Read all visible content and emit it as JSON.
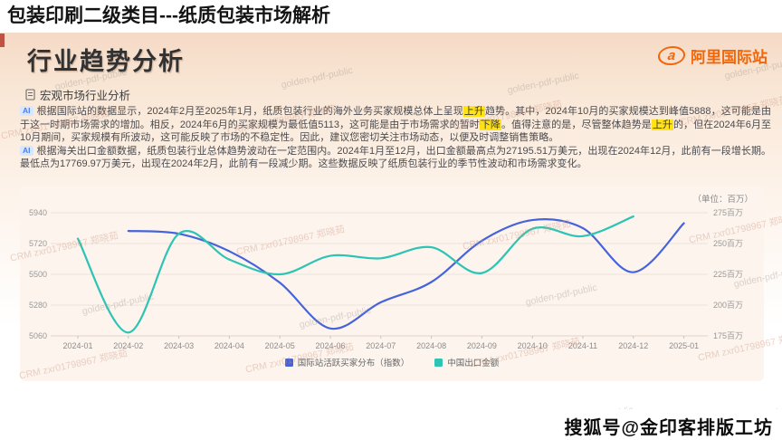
{
  "page": {
    "title": "包装印刷二级类目---纸质包装市场解析",
    "footer": "搜狐号@金印客排版工坊"
  },
  "slide": {
    "heading": "行业趋势分析",
    "brand": {
      "name": "阿里国际站",
      "color": "#f2660a",
      "icon": "alibaba-logo-icon"
    },
    "section": {
      "icon": "document-icon",
      "label": "宏观市场行业分析"
    },
    "paragraphs": [
      {
        "badge": "AI",
        "segments": [
          {
            "t": "根据国际站的数据显示，2024年2月至2025年1月，纸质包装行业的海外业务买家规模总体上呈现"
          },
          {
            "t": "上升",
            "hl": true
          },
          {
            "t": "趋势。其中，2024年10月的买家规模达到峰值5888，这可能是由于这一时期市场需求的增加。相反，2024年6月的买家规模为最低值5113，这可能是由于市场需求的暂时"
          },
          {
            "t": "下降",
            "hl": true
          },
          {
            "t": "。值得注意的是，尽管整体趋势是"
          },
          {
            "t": "上升",
            "hl": true
          },
          {
            "t": "的，但在2024年6月至10月期间，买家规模有所波动，这可能反映了市场的不稳定性。因此，建议您密切关注市场动态，以便及时调整销售策略。"
          }
        ]
      },
      {
        "badge": "AI",
        "segments": [
          {
            "t": "根据海关出口金额数据，纸质包装行业总体趋势波动在一定范围内。2024年1月至12月，出口金额最高点为27195.51万美元，出现在2024年12月，此前有一段增长期。最低点为17769.97万美元，出现在2024年2月，此前有一段减少期。这些数据反映了纸质包装行业的季节性波动和市场需求变化。"
          }
        ]
      }
    ],
    "watermarks": {
      "golden": "golden-pdf-public",
      "crm": "CRM zxr01798967 郑晓茹"
    }
  },
  "chart_data": {
    "type": "line",
    "title": "",
    "unit_label": "（单位：百万）",
    "grid": true,
    "legend_position": "bottom",
    "categories": [
      "2024-01",
      "2024-02",
      "2024-03",
      "2024-04",
      "2024-05",
      "2024-06",
      "2024-07",
      "2024-08",
      "2024-09",
      "2024-10",
      "2024-11",
      "2024-12",
      "2025-01"
    ],
    "left_axis": {
      "min": 5060,
      "max": 5940,
      "ticks": [
        5940,
        5720,
        5500,
        5280,
        5060
      ],
      "suffix": ""
    },
    "right_axis": {
      "min": 175,
      "max": 275,
      "ticks": [
        275,
        250,
        225,
        200,
        175
      ],
      "suffix": "百万"
    },
    "series": [
      {
        "name": "国际站活跃买家分布（指数）",
        "axis": "left",
        "color": "#4663dc",
        "values": [
          null,
          5810,
          5790,
          5665,
          5440,
          5113,
          5300,
          5445,
          5740,
          5888,
          5830,
          5515,
          5865
        ]
      },
      {
        "name": "中国出口金额",
        "axis": "right",
        "color": "#2dc4b4",
        "values": [
          254,
          177.7,
          258,
          237,
          225,
          240,
          238,
          247,
          226,
          262,
          256,
          272,
          null
        ]
      }
    ]
  }
}
